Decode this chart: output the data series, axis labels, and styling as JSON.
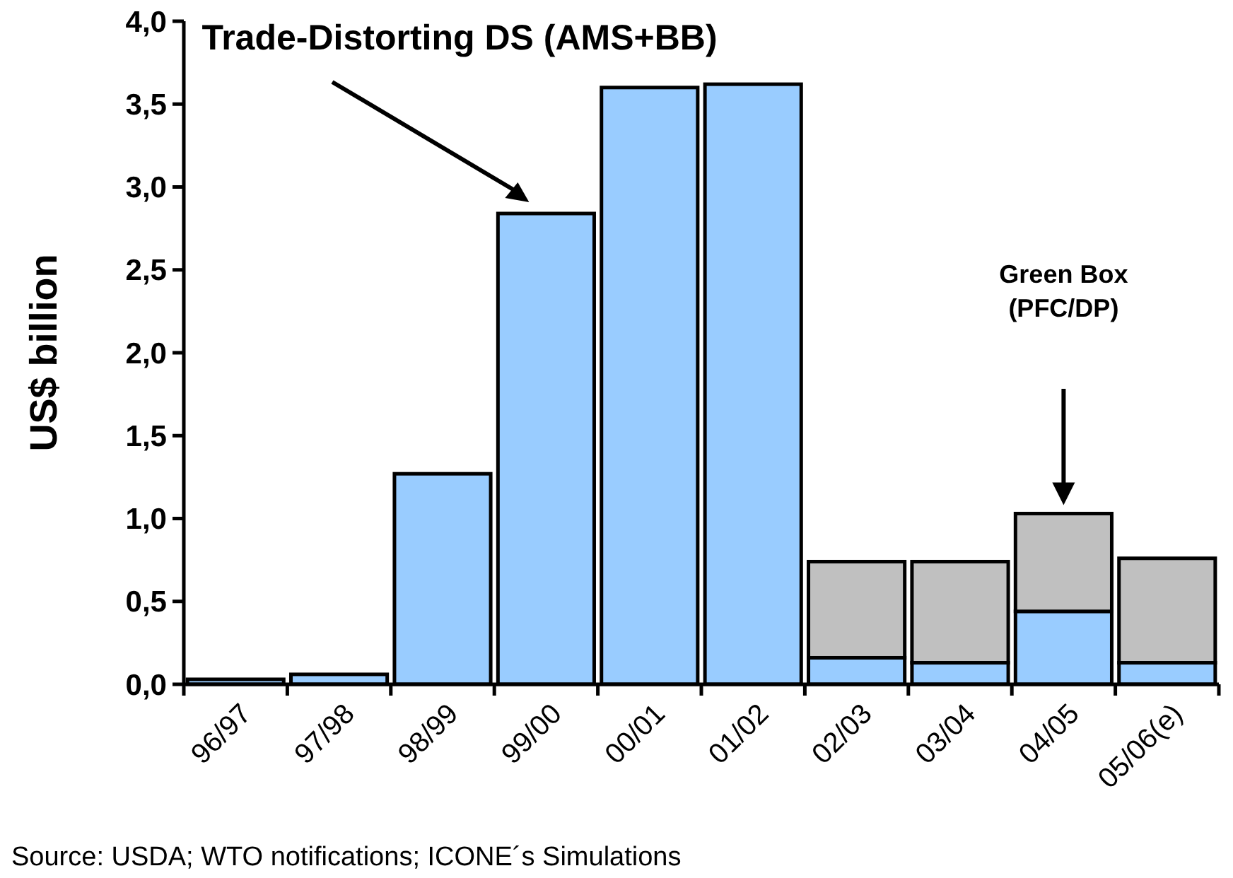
{
  "chart_data": {
    "type": "bar",
    "ylabel": "US$ billion",
    "categories": [
      "96/97",
      "97/98",
      "98/99",
      "99/00",
      "00/01",
      "01/02",
      "02/03",
      "03/04",
      "04/05",
      "05/06(e)"
    ],
    "stacked": true,
    "series": [
      {
        "color": "#99ccff",
        "values": [
          0.03,
          0.06,
          1.27,
          2.84,
          3.6,
          3.62,
          0.16,
          0.13,
          0.44,
          0.13
        ]
      },
      {
        "color": "#c0c0c0",
        "values": [
          null,
          null,
          null,
          null,
          null,
          null,
          0.58,
          0.61,
          0.59,
          0.63
        ]
      }
    ],
    "ylim": [
      0,
      4
    ],
    "yticks": [
      {
        "value": 0,
        "label": "0,0"
      },
      {
        "value": 0.5,
        "label": "0,5"
      },
      {
        "value": 1,
        "label": "1,0"
      },
      {
        "value": 1.5,
        "label": "1,5"
      },
      {
        "value": 2,
        "label": "2,0"
      },
      {
        "value": 2.5,
        "label": "2,5"
      },
      {
        "value": 3,
        "label": "3,0"
      },
      {
        "value": 3.5,
        "label": "3,5"
      },
      {
        "value": 4,
        "label": "4,0"
      }
    ],
    "grid": false,
    "annotations": [
      "Trade-Distorting DS (AMS+BB)",
      "Green Box\n(PFC/DP)",
      "Source: USDA; WTO notifications; ICONE´s Simulations"
    ]
  }
}
